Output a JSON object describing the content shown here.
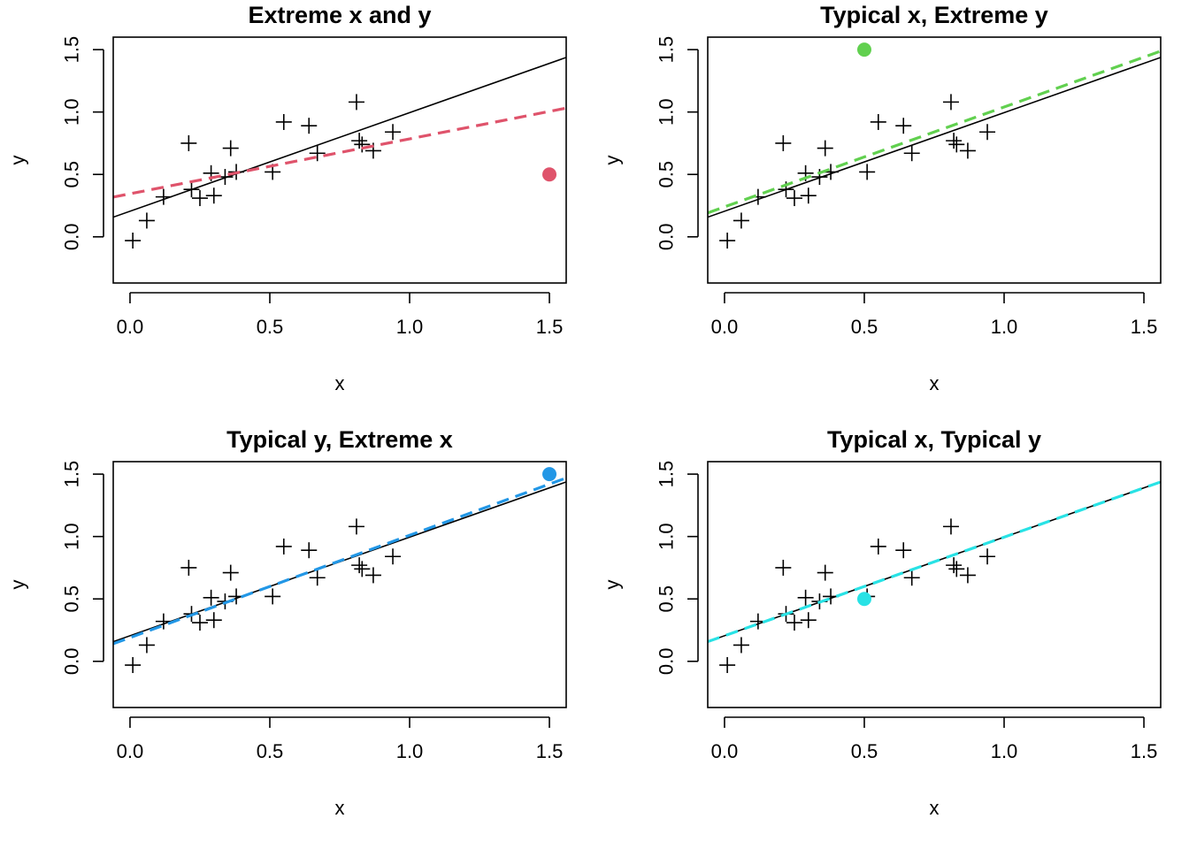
{
  "chart_data": [
    {
      "type": "scatter",
      "title": "Extreme x and y",
      "xlabel": "x",
      "ylabel": "y",
      "xlim": [
        -0.06,
        1.56
      ],
      "ylim": [
        -0.37,
        1.6
      ],
      "xticks": [
        0.0,
        0.5,
        1.0,
        1.5
      ],
      "xtick_labels": [
        "0.0",
        "0.5",
        "1.0",
        "1.5"
      ],
      "yticks": [
        0.0,
        0.5,
        1.0,
        1.5
      ],
      "ytick_labels": [
        "0.0",
        "0.5",
        "1.0",
        "1.5"
      ],
      "grid": false,
      "base_points": {
        "marker": "plus",
        "x": [
          0.01,
          0.06,
          0.12,
          0.21,
          0.22,
          0.25,
          0.29,
          0.3,
          0.34,
          0.36,
          0.38,
          0.51,
          0.55,
          0.64,
          0.67,
          0.81,
          0.82,
          0.83,
          0.87,
          0.94
        ],
        "y": [
          -0.03,
          0.13,
          0.32,
          0.75,
          0.38,
          0.31,
          0.51,
          0.33,
          0.48,
          0.71,
          0.52,
          0.52,
          0.92,
          0.89,
          0.67,
          1.08,
          0.77,
          0.74,
          0.69,
          0.84
        ]
      },
      "extra_point": {
        "x": 1.5,
        "y": 0.5,
        "color": "#DF536B",
        "marker": "filled-circle"
      },
      "base_fit": {
        "intercept": 0.205,
        "slope": 0.79,
        "color": "#000000",
        "style": "solid"
      },
      "new_fit": {
        "intercept": 0.345,
        "slope": 0.44,
        "color": "#DF536B",
        "style": "dashed"
      }
    },
    {
      "type": "scatter",
      "title": "Typical x, Extreme y",
      "xlabel": "x",
      "ylabel": "y",
      "xlim": [
        -0.06,
        1.56
      ],
      "ylim": [
        -0.37,
        1.6
      ],
      "xticks": [
        0.0,
        0.5,
        1.0,
        1.5
      ],
      "xtick_labels": [
        "0.0",
        "0.5",
        "1.0",
        "1.5"
      ],
      "yticks": [
        0.0,
        0.5,
        1.0,
        1.5
      ],
      "ytick_labels": [
        "0.0",
        "0.5",
        "1.0",
        "1.5"
      ],
      "grid": false,
      "base_points": {
        "marker": "plus",
        "x": [
          0.01,
          0.06,
          0.12,
          0.21,
          0.22,
          0.25,
          0.29,
          0.3,
          0.34,
          0.36,
          0.38,
          0.51,
          0.55,
          0.64,
          0.67,
          0.81,
          0.82,
          0.83,
          0.87,
          0.94
        ],
        "y": [
          -0.03,
          0.13,
          0.32,
          0.75,
          0.38,
          0.31,
          0.51,
          0.33,
          0.48,
          0.71,
          0.52,
          0.52,
          0.92,
          0.89,
          0.67,
          1.08,
          0.77,
          0.74,
          0.69,
          0.84
        ]
      },
      "extra_point": {
        "x": 0.5,
        "y": 1.5,
        "color": "#61D04F",
        "marker": "filled-circle"
      },
      "base_fit": {
        "intercept": 0.205,
        "slope": 0.79,
        "color": "#000000",
        "style": "solid"
      },
      "new_fit": {
        "intercept": 0.24,
        "slope": 0.8,
        "color": "#61D04F",
        "style": "dashed"
      }
    },
    {
      "type": "scatter",
      "title": "Typical y, Extreme x",
      "xlabel": "x",
      "ylabel": "y",
      "xlim": [
        -0.06,
        1.56
      ],
      "ylim": [
        -0.37,
        1.6
      ],
      "xticks": [
        0.0,
        0.5,
        1.0,
        1.5
      ],
      "xtick_labels": [
        "0.0",
        "0.5",
        "1.0",
        "1.5"
      ],
      "yticks": [
        0.0,
        0.5,
        1.0,
        1.5
      ],
      "ytick_labels": [
        "0.0",
        "0.5",
        "1.0",
        "1.5"
      ],
      "grid": false,
      "base_points": {
        "marker": "plus",
        "x": [
          0.01,
          0.06,
          0.12,
          0.21,
          0.22,
          0.25,
          0.29,
          0.3,
          0.34,
          0.36,
          0.38,
          0.51,
          0.55,
          0.64,
          0.67,
          0.81,
          0.82,
          0.83,
          0.87,
          0.94
        ],
        "y": [
          -0.03,
          0.13,
          0.32,
          0.75,
          0.38,
          0.31,
          0.51,
          0.33,
          0.48,
          0.71,
          0.52,
          0.52,
          0.92,
          0.89,
          0.67,
          1.08,
          0.77,
          0.74,
          0.69,
          0.84
        ]
      },
      "extra_point": {
        "x": 1.5,
        "y": 1.5,
        "color": "#2297E6",
        "marker": "filled-circle"
      },
      "base_fit": {
        "intercept": 0.205,
        "slope": 0.79,
        "color": "#000000",
        "style": "solid"
      },
      "new_fit": {
        "intercept": 0.19,
        "slope": 0.82,
        "color": "#2297E6",
        "style": "dashed"
      }
    },
    {
      "type": "scatter",
      "title": "Typical x, Typical y",
      "xlabel": "x",
      "ylabel": "y",
      "xlim": [
        -0.06,
        1.56
      ],
      "ylim": [
        -0.37,
        1.6
      ],
      "xticks": [
        0.0,
        0.5,
        1.0,
        1.5
      ],
      "xtick_labels": [
        "0.0",
        "0.5",
        "1.0",
        "1.5"
      ],
      "yticks": [
        0.0,
        0.5,
        1.0,
        1.5
      ],
      "ytick_labels": [
        "0.0",
        "0.5",
        "1.0",
        "1.5"
      ],
      "grid": false,
      "base_points": {
        "marker": "plus",
        "x": [
          0.01,
          0.06,
          0.12,
          0.21,
          0.22,
          0.25,
          0.29,
          0.3,
          0.34,
          0.36,
          0.38,
          0.51,
          0.55,
          0.64,
          0.67,
          0.81,
          0.82,
          0.83,
          0.87,
          0.94
        ],
        "y": [
          -0.03,
          0.13,
          0.32,
          0.75,
          0.38,
          0.31,
          0.51,
          0.33,
          0.48,
          0.71,
          0.52,
          0.52,
          0.92,
          0.89,
          0.67,
          1.08,
          0.77,
          0.74,
          0.69,
          0.84
        ]
      },
      "extra_point": {
        "x": 0.5,
        "y": 0.5,
        "color": "#28E2E5",
        "marker": "filled-circle"
      },
      "base_fit": {
        "intercept": 0.205,
        "slope": 0.79,
        "color": "#000000",
        "style": "solid"
      },
      "new_fit": {
        "intercept": 0.205,
        "slope": 0.79,
        "color": "#28E2E5",
        "style": "dashed"
      }
    }
  ]
}
